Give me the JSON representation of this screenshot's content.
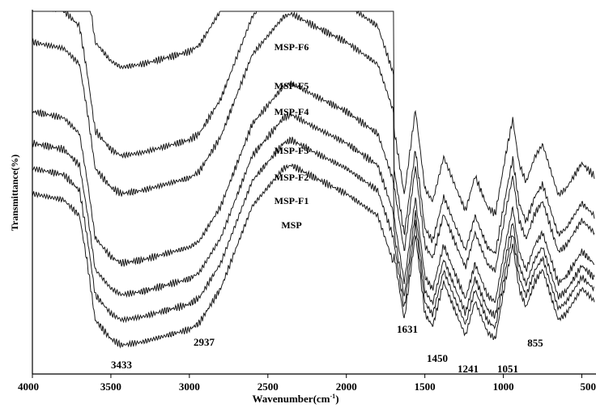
{
  "chart_data": {
    "type": "line",
    "xlabel": "Wavenumber(cm",
    "xlabel_sup": "-1",
    "xlabel_close": ")",
    "ylabel": "Transmittance(%)",
    "xlim": [
      4000,
      400
    ],
    "x_reversed": true,
    "xticks": [
      4000,
      3500,
      3000,
      2500,
      2000,
      1500,
      1000,
      500
    ],
    "xtick_labels": [
      "4000",
      "3500",
      "3000",
      "2500",
      "2000",
      "1500",
      "1000",
      "500"
    ],
    "y_units": "arbitrary (offset traces)",
    "grid": false,
    "series": [
      {
        "name": "MSP",
        "offset": 0,
        "points": [
          [
            4000,
            52
          ],
          [
            3800,
            50
          ],
          [
            3700,
            45
          ],
          [
            3650,
            30
          ],
          [
            3600,
            12
          ],
          [
            3500,
            6
          ],
          [
            3433,
            4
          ],
          [
            3300,
            5
          ],
          [
            3000,
            9
          ],
          [
            2937,
            11
          ],
          [
            2800,
            22
          ],
          [
            2600,
            48
          ],
          [
            2400,
            60
          ],
          [
            2350,
            61
          ],
          [
            2200,
            57
          ],
          [
            2000,
            52
          ],
          [
            1800,
            45
          ],
          [
            1700,
            30
          ],
          [
            1631,
            8
          ],
          [
            1560,
            35
          ],
          [
            1500,
            10
          ],
          [
            1450,
            6
          ],
          [
            1380,
            20
          ],
          [
            1300,
            10
          ],
          [
            1241,
            3
          ],
          [
            1180,
            14
          ],
          [
            1100,
            4
          ],
          [
            1051,
            2
          ],
          [
            980,
            22
          ],
          [
            940,
            32
          ],
          [
            900,
            18
          ],
          [
            855,
            12
          ],
          [
            800,
            20
          ],
          [
            750,
            24
          ],
          [
            700,
            16
          ],
          [
            650,
            8
          ],
          [
            600,
            10
          ],
          [
            500,
            18
          ],
          [
            420,
            14
          ]
        ]
      },
      {
        "name": "MSP-F1",
        "offset": 8,
        "points": []
      },
      {
        "name": "MSP-F2",
        "offset": 16,
        "points": []
      },
      {
        "name": "MSP-F3",
        "offset": 26,
        "points": []
      },
      {
        "name": "MSP-F4",
        "offset": 48,
        "points": []
      },
      {
        "name": "MSP-F5",
        "offset": 60,
        "points": []
      },
      {
        "name": "MSP-F6",
        "offset": 88,
        "points": []
      }
    ],
    "peak_labels": [
      {
        "text": "3433",
        "x": 3433
      },
      {
        "text": "2937",
        "x": 2937
      },
      {
        "text": "1631",
        "x": 1631
      },
      {
        "text": "1450",
        "x": 1450
      },
      {
        "text": "1241",
        "x": 1241
      },
      {
        "text": "1051",
        "x": 1051
      },
      {
        "text": "855",
        "x": 855
      }
    ]
  }
}
